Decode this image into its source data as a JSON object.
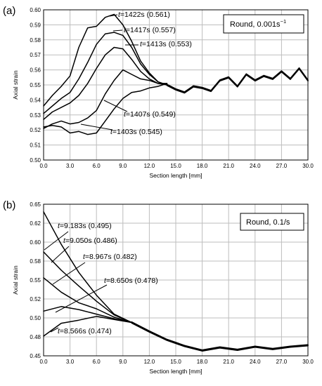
{
  "chart_data": [
    {
      "type": "line",
      "panel_label": "(a)",
      "legend_label": "Round, 0.001s",
      "legend_superscript": "−1",
      "xlabel": "Section length [mm]",
      "ylabel": "Axial strain",
      "xlim": [
        0,
        30
      ],
      "ylim": [
        0.5,
        0.6
      ],
      "x_ticks": [
        "0.0",
        "3.0",
        "6.0",
        "9.0",
        "12.0",
        "15.0",
        "18.0",
        "21.0",
        "24.0",
        "27.0",
        "30.0"
      ],
      "x_tick_values": [
        0,
        3,
        6,
        9,
        12,
        15,
        18,
        21,
        24,
        27,
        30
      ],
      "y_ticks": [
        "0.50",
        "0.51",
        "0.52",
        "0.53",
        "0.54",
        "0.55",
        "0.56",
        "0.57",
        "0.58",
        "0.59",
        "0.60"
      ],
      "y_tick_values": [
        0.5,
        0.51,
        0.52,
        0.53,
        0.54,
        0.55,
        0.56,
        0.57,
        0.58,
        0.59,
        0.6
      ],
      "grid": true,
      "series": [
        {
          "label": "1422s (0.561)",
          "x": [
            0,
            1,
            2,
            3,
            4,
            5,
            6,
            7,
            8,
            9,
            10,
            11,
            12,
            13,
            14
          ],
          "y": [
            0.536,
            0.543,
            0.549,
            0.556,
            0.575,
            0.588,
            0.589,
            0.595,
            0.597,
            0.59,
            0.579,
            0.566,
            0.558,
            0.552,
            0.55
          ]
        },
        {
          "label": "1417s (0.557)",
          "x": [
            0,
            1,
            2,
            3,
            4,
            5,
            6,
            7,
            8,
            9,
            10,
            11,
            12,
            13,
            14
          ],
          "y": [
            0.531,
            0.536,
            0.541,
            0.545,
            0.554,
            0.565,
            0.577,
            0.584,
            0.585,
            0.583,
            0.575,
            0.564,
            0.557,
            0.552,
            0.55
          ]
        },
        {
          "label": "1413s (0.553)",
          "x": [
            0,
            1,
            2,
            3,
            4,
            5,
            6,
            7,
            8,
            9,
            10,
            11,
            12,
            13,
            14
          ],
          "y": [
            0.527,
            0.532,
            0.535,
            0.538,
            0.543,
            0.551,
            0.561,
            0.57,
            0.575,
            0.574,
            0.567,
            0.559,
            0.554,
            0.551,
            0.55
          ]
        },
        {
          "label": "1407s (0.549)",
          "x": [
            0,
            1,
            2,
            3,
            4,
            5,
            6,
            7,
            8,
            9,
            10,
            11,
            12,
            13,
            14
          ],
          "y": [
            0.521,
            0.524,
            0.526,
            0.524,
            0.525,
            0.528,
            0.533,
            0.544,
            0.553,
            0.56,
            0.557,
            0.554,
            0.553,
            0.551,
            0.551
          ]
        },
        {
          "label": "1403s (0.545)",
          "x": [
            0,
            1,
            2,
            3,
            4,
            5,
            6,
            7,
            8,
            9,
            10,
            11,
            12,
            13,
            14
          ],
          "y": [
            0.522,
            0.523,
            0.522,
            0.518,
            0.519,
            0.517,
            0.518,
            0.526,
            0.534,
            0.541,
            0.545,
            0.546,
            0.548,
            0.549,
            0.551
          ]
        }
      ],
      "shared_tail": {
        "x": [
          14,
          15,
          16,
          17,
          18,
          19,
          20,
          21,
          22,
          23,
          24,
          25,
          26,
          27,
          28,
          29,
          30
        ],
        "y": [
          0.55,
          0.547,
          0.545,
          0.549,
          0.548,
          0.546,
          0.553,
          0.555,
          0.549,
          0.557,
          0.553,
          0.556,
          0.554,
          0.559,
          0.554,
          0.561,
          0.553
        ]
      },
      "annotations": [
        {
          "prefix": "t",
          "text": "=1422s (0.561)"
        },
        {
          "prefix": "t",
          "text": "=1417s (0.557)"
        },
        {
          "prefix": "t",
          "text": "=1413s (0.553)"
        },
        {
          "prefix": "t",
          "text": "=1407s (0.549)"
        },
        {
          "prefix": "t",
          "text": "=1403s (0.545)"
        }
      ]
    },
    {
      "type": "line",
      "panel_label": "(b)",
      "legend_label": "Round, 0.1/s",
      "xlabel": "Section length [mm]",
      "ylabel": "Axial strain",
      "xlim": [
        0,
        30
      ],
      "ylim": [
        0.45,
        0.65
      ],
      "x_ticks": [
        "0.0",
        "3.0",
        "6.0",
        "9.0",
        "12.0",
        "15.0",
        "18.0",
        "21.0",
        "24.0",
        "27.0",
        "30.0"
      ],
      "x_tick_values": [
        0,
        3,
        6,
        9,
        12,
        15,
        18,
        21,
        24,
        27,
        30
      ],
      "y_ticks": [
        "0.45",
        "0.48",
        "0.50",
        "0.52",
        "0.55",
        "0.58",
        "0.60",
        "0.62",
        "0.65"
      ],
      "y_tick_values": [
        0.45,
        0.475,
        0.5,
        0.525,
        0.55,
        0.575,
        0.6,
        0.625,
        0.65
      ],
      "grid": true,
      "series": [
        {
          "label": "9.183s (0.495)",
          "x": [
            0,
            2,
            4,
            6,
            8,
            10
          ],
          "y": [
            0.64,
            0.597,
            0.56,
            0.53,
            0.505,
            0.494
          ]
        },
        {
          "label": "9.050s (0.486)",
          "x": [
            0,
            2,
            4,
            6,
            8,
            10
          ],
          "y": [
            0.587,
            0.563,
            0.542,
            0.522,
            0.504,
            0.494
          ]
        },
        {
          "label": "8.967s (0.482)",
          "x": [
            0,
            2,
            4,
            6,
            8,
            10
          ],
          "y": [
            0.553,
            0.534,
            0.52,
            0.512,
            0.501,
            0.494
          ]
        },
        {
          "label": "8.650s (0.478)",
          "x": [
            0,
            2,
            4,
            6,
            8,
            10
          ],
          "y": [
            0.509,
            0.515,
            0.511,
            0.505,
            0.499,
            0.494
          ]
        },
        {
          "label": "8.566s (0.474)",
          "x": [
            0,
            2,
            4,
            6,
            8,
            10
          ],
          "y": [
            0.476,
            0.493,
            0.497,
            0.502,
            0.498,
            0.494
          ]
        }
      ],
      "shared_tail": {
        "x": [
          10,
          12,
          14,
          16,
          18,
          20,
          22,
          24,
          26,
          28,
          30
        ],
        "y": [
          0.494,
          0.482,
          0.471,
          0.463,
          0.457,
          0.461,
          0.458,
          0.462,
          0.459,
          0.462,
          0.464
        ]
      },
      "annotations": [
        {
          "prefix": "t",
          "text": "=9.183s (0.495)"
        },
        {
          "prefix": "t",
          "text": "=9.050s (0.486)"
        },
        {
          "prefix": "t",
          "text": "=8.967s (0.482)"
        },
        {
          "prefix": "t",
          "text": "=8.650s (0.478)"
        },
        {
          "prefix": "t",
          "text": "=8.566s (0.474)"
        }
      ]
    }
  ]
}
